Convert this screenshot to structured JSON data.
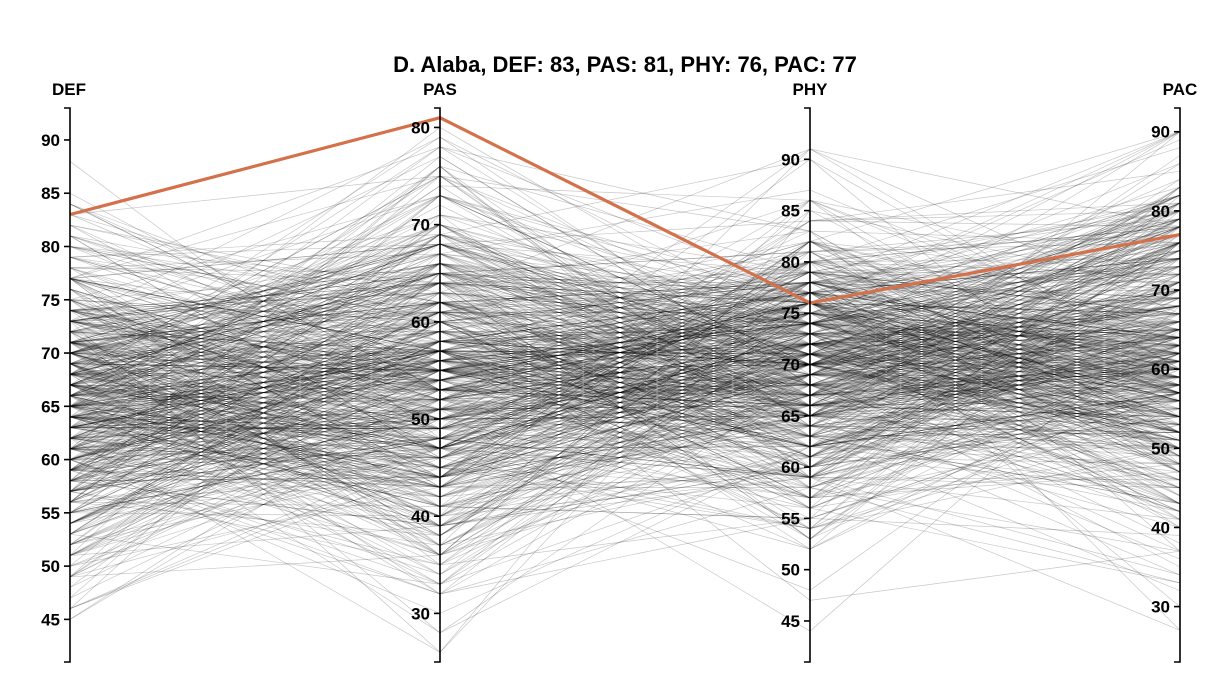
{
  "chart_data": {
    "type": "parallel-coordinates",
    "title": "D. Alaba, DEF: 83, PAS: 81, PHY: 76, PAC: 77",
    "axes": [
      {
        "name": "DEF",
        "range": [
          41,
          93
        ],
        "ticks": [
          45,
          50,
          55,
          60,
          65,
          70,
          75,
          80,
          85,
          90
        ]
      },
      {
        "name": "PAS",
        "range": [
          25,
          82
        ],
        "ticks": [
          30,
          40,
          50,
          60,
          70,
          80
        ]
      },
      {
        "name": "PHY",
        "range": [
          41,
          95
        ],
        "ticks": [
          45,
          50,
          55,
          60,
          65,
          70,
          75,
          80,
          85,
          90
        ]
      },
      {
        "name": "PAC",
        "range": [
          23,
          93
        ],
        "ticks": [
          30,
          40,
          50,
          60,
          70,
          80,
          90
        ]
      }
    ],
    "highlight": {
      "player": "D. Alaba",
      "values": {
        "DEF": 83,
        "PAS": 81,
        "PHY": 76,
        "PAC": 77
      },
      "color": "#d4704a"
    },
    "background_series": {
      "count": 700,
      "distributions": {
        "DEF": {
          "mean": 66,
          "sd": 8,
          "min": 45,
          "max": 91
        },
        "PAS": {
          "mean": 55,
          "sd": 10,
          "min": 26,
          "max": 81
        },
        "PHY": {
          "mean": 70,
          "sd": 7,
          "min": 44,
          "max": 91
        },
        "PAC": {
          "mean": 62,
          "sd": 12,
          "min": 27,
          "max": 90
        }
      },
      "color": "#000000"
    },
    "grid": false,
    "legend": "none"
  }
}
